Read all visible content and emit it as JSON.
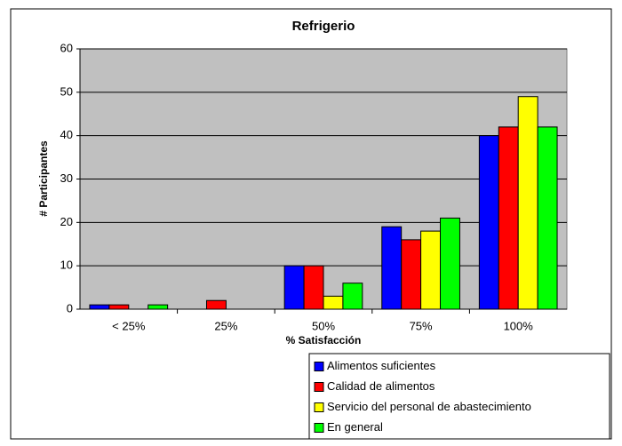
{
  "chart_data": {
    "type": "bar",
    "title": "Refrigerio",
    "x_label": "% Satisfacción",
    "y_label": "# Participantes",
    "categories": [
      "< 25%",
      "25%",
      "50%",
      "75%",
      "100%"
    ],
    "series": [
      {
        "name": "Alimentos suficientes",
        "color": "#0000ff",
        "values": [
          1,
          0,
          10,
          19,
          40
        ]
      },
      {
        "name": "Calidad de alimentos",
        "color": "#ff0000",
        "values": [
          1,
          2,
          10,
          16,
          42
        ]
      },
      {
        "name": "Servicio del personal de abastecimiento",
        "color": "#ffff00",
        "values": [
          0,
          0,
          3,
          18,
          49
        ]
      },
      {
        "name": "En general",
        "color": "#00ff00",
        "values": [
          1,
          0,
          6,
          21,
          42
        ]
      }
    ],
    "ylim": [
      0,
      60
    ],
    "yticks": [
      0,
      10,
      20,
      30,
      40,
      50,
      60
    ],
    "grid": true,
    "legend": "bottom-right"
  }
}
